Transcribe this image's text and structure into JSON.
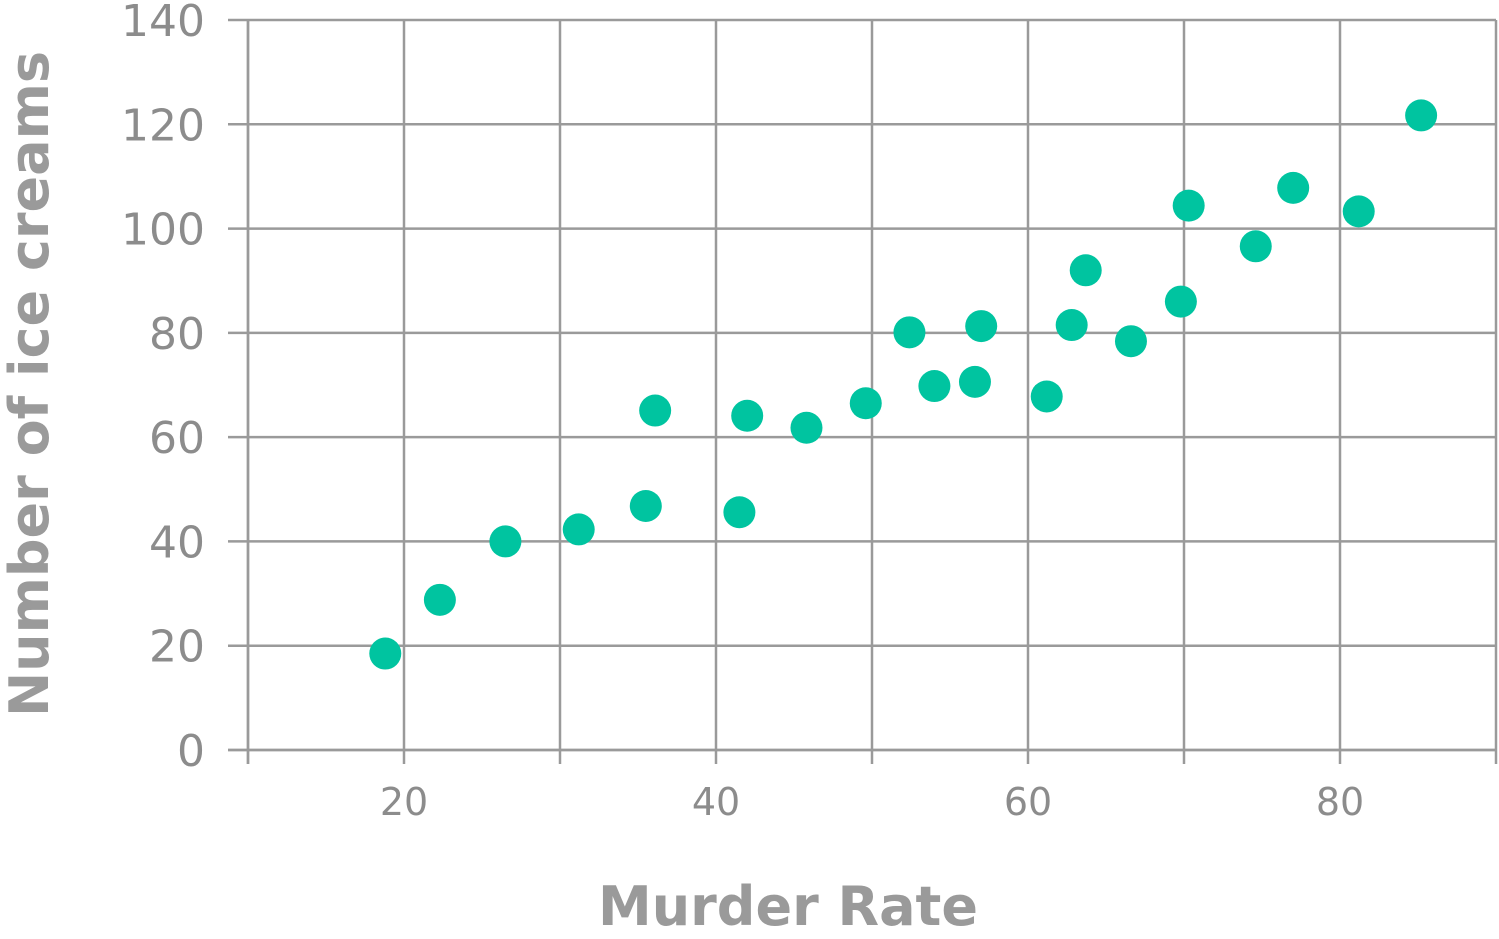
{
  "chart_data": {
    "type": "scatter",
    "xlabel": "Murder Rate",
    "ylabel": "Number of ice creams",
    "xlim": [
      10,
      90
    ],
    "ylim": [
      0,
      140
    ],
    "x_ticks": [
      20,
      40,
      60,
      80
    ],
    "y_ticks": [
      0,
      20,
      40,
      60,
      80,
      100,
      120,
      140
    ],
    "grid": true,
    "legend": "none",
    "marker_color": "#00c4a0",
    "points": [
      {
        "x": 18.8,
        "y": 18.5
      },
      {
        "x": 22.3,
        "y": 28.8
      },
      {
        "x": 26.5,
        "y": 40.0
      },
      {
        "x": 31.2,
        "y": 42.3
      },
      {
        "x": 35.5,
        "y": 46.8
      },
      {
        "x": 36.1,
        "y": 65.1
      },
      {
        "x": 41.5,
        "y": 45.6
      },
      {
        "x": 42.0,
        "y": 64.1
      },
      {
        "x": 45.8,
        "y": 61.8
      },
      {
        "x": 49.6,
        "y": 66.5
      },
      {
        "x": 52.4,
        "y": 80.1
      },
      {
        "x": 54.0,
        "y": 69.8
      },
      {
        "x": 56.6,
        "y": 70.6
      },
      {
        "x": 57.0,
        "y": 81.3
      },
      {
        "x": 61.2,
        "y": 67.8
      },
      {
        "x": 62.8,
        "y": 81.5
      },
      {
        "x": 63.7,
        "y": 92.0
      },
      {
        "x": 66.6,
        "y": 78.4
      },
      {
        "x": 69.8,
        "y": 86.0
      },
      {
        "x": 70.3,
        "y": 104.4
      },
      {
        "x": 74.6,
        "y": 96.6
      },
      {
        "x": 77.0,
        "y": 107.8
      },
      {
        "x": 81.2,
        "y": 103.3
      },
      {
        "x": 85.2,
        "y": 121.7
      }
    ]
  }
}
